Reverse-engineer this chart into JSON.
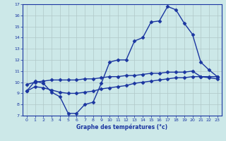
{
  "title": "Graphe des températures (°c)",
  "bg_color": "#cce8e8",
  "line_color": "#1a35a0",
  "grid_color": "#b0c8c8",
  "xlim": [
    -0.5,
    23.5
  ],
  "ylim": [
    7,
    17
  ],
  "yticks": [
    7,
    8,
    9,
    10,
    11,
    12,
    13,
    14,
    15,
    16,
    17
  ],
  "xticks": [
    0,
    1,
    2,
    3,
    4,
    5,
    6,
    7,
    8,
    9,
    10,
    11,
    12,
    13,
    14,
    15,
    16,
    17,
    18,
    19,
    20,
    21,
    22,
    23
  ],
  "curve1_x": [
    0,
    1,
    2,
    3,
    4,
    5,
    6,
    7,
    8,
    9,
    10,
    11,
    12,
    13,
    14,
    15,
    16,
    17,
    18,
    19,
    20,
    21,
    22,
    23
  ],
  "curve1_y": [
    9.2,
    10.1,
    9.9,
    9.1,
    8.7,
    7.2,
    7.2,
    8.0,
    8.2,
    9.9,
    11.8,
    12.0,
    12.0,
    13.7,
    14.0,
    15.4,
    15.5,
    16.8,
    16.5,
    15.3,
    14.3,
    11.8,
    11.1,
    10.5
  ],
  "curve2_x": [
    0,
    1,
    2,
    3,
    4,
    5,
    6,
    7,
    8,
    9,
    10,
    11,
    12,
    13,
    14,
    15,
    16,
    17,
    18,
    19,
    20,
    21,
    22,
    23
  ],
  "curve2_y": [
    9.2,
    9.6,
    9.5,
    9.3,
    9.1,
    9.0,
    9.0,
    9.1,
    9.2,
    9.4,
    9.5,
    9.6,
    9.7,
    9.9,
    10.0,
    10.1,
    10.2,
    10.3,
    10.4,
    10.4,
    10.5,
    10.5,
    10.5,
    10.5
  ],
  "curve3_x": [
    0,
    1,
    2,
    3,
    4,
    5,
    6,
    7,
    8,
    9,
    10,
    11,
    12,
    13,
    14,
    15,
    16,
    17,
    18,
    19,
    20,
    21,
    22,
    23
  ],
  "curve3_y": [
    9.8,
    10.0,
    10.1,
    10.2,
    10.2,
    10.2,
    10.2,
    10.3,
    10.3,
    10.4,
    10.5,
    10.5,
    10.6,
    10.6,
    10.7,
    10.8,
    10.8,
    10.9,
    10.9,
    10.9,
    11.0,
    10.5,
    10.4,
    10.3
  ],
  "marker": "D",
  "markersize": 2.5,
  "linewidth": 1.0
}
